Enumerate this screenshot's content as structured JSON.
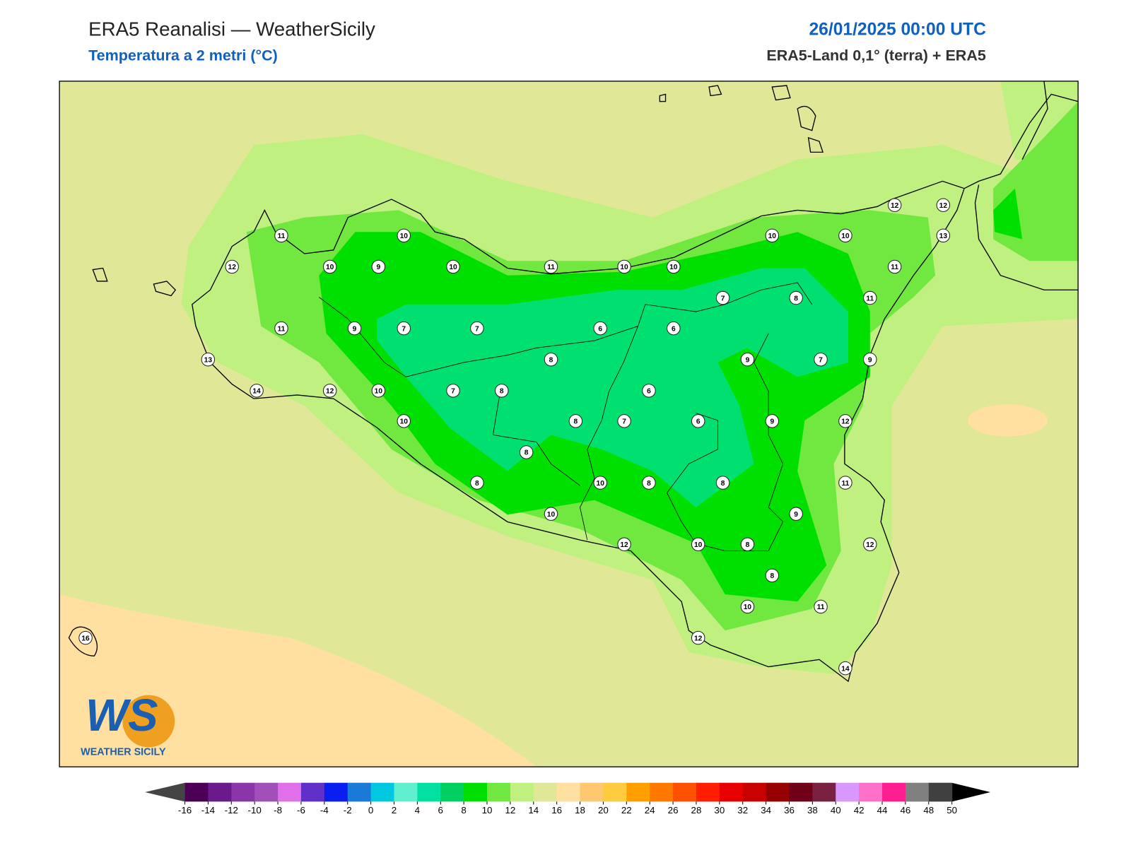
{
  "header": {
    "title": "ERA5 Reanalisi — WeatherSicily",
    "subtitle": "Temperatura a 2 metri (°C)",
    "date": "26/01/2025 00:00 UTC",
    "source": "ERA5-Land 0,1° (terra) + ERA5"
  },
  "stations": {
    "values": [
      11,
      10,
      12,
      10,
      9,
      10,
      11,
      10,
      10,
      10,
      10,
      12,
      12,
      13,
      11,
      11,
      7,
      8,
      11,
      9,
      7,
      7,
      6,
      6,
      13,
      8,
      9,
      7,
      9,
      14,
      12,
      10,
      7,
      8,
      6,
      10,
      8,
      7,
      6,
      9,
      12,
      8,
      8,
      10,
      8,
      8,
      11,
      9,
      10,
      12,
      10,
      8,
      12,
      8,
      10,
      11,
      12,
      14,
      16
    ]
  },
  "logo": {
    "mark": "WS",
    "name": "WEATHER SICILY"
  },
  "colorbar": {
    "ticks": [
      -16,
      -14,
      -12,
      -10,
      -8,
      -6,
      -4,
      -2,
      0,
      2,
      4,
      6,
      8,
      10,
      12,
      14,
      16,
      18,
      20,
      22,
      24,
      26,
      28,
      30,
      32,
      34,
      36,
      38,
      40,
      42,
      44,
      46,
      48,
      50
    ],
    "colors": [
      "#4b0055",
      "#6a1a8a",
      "#8a35a8",
      "#a050b8",
      "#e070e8",
      "#6030c8",
      "#0a1ef0",
      "#1a7ad8",
      "#00c8e0",
      "#60f0d0",
      "#00e0a0",
      "#00d060",
      "#00e000",
      "#70e840",
      "#c0f080",
      "#e0e898",
      "#ffe0a0",
      "#ffc870",
      "#ffcc40",
      "#ffa000",
      "#ff7800",
      "#ff5000",
      "#ff1e00",
      "#e60000",
      "#c80000",
      "#960000",
      "#700018",
      "#7a2040",
      "#d898ff",
      "#ff70c8",
      "#ff1e90",
      "#808080",
      "#404040"
    ]
  }
}
